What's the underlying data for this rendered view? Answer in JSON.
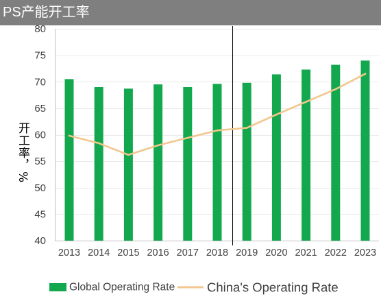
{
  "chart_data": {
    "type": "bar",
    "title": "PS产能开工率",
    "ylabel": "开工率，%",
    "categories": [
      "2013",
      "2014",
      "2015",
      "2016",
      "2017",
      "2018",
      "2019",
      "2020",
      "2021",
      "2022",
      "2023"
    ],
    "ylim": [
      40,
      80
    ],
    "yticks": [
      40,
      45,
      50,
      55,
      60,
      65,
      70,
      75,
      80
    ],
    "grid": true,
    "legend": "bottom",
    "series": [
      {
        "name": "Global Operating Rate",
        "type": "bar",
        "color": "#13a84e",
        "values": [
          70.5,
          69.0,
          68.7,
          69.5,
          69.0,
          69.6,
          69.8,
          71.4,
          72.3,
          73.2,
          74.0
        ]
      },
      {
        "name": "China's Operating Rate",
        "type": "line",
        "color": "#f2c68d",
        "values": [
          59.8,
          58.4,
          56.2,
          58.0,
          59.4,
          60.8,
          61.3,
          63.8,
          66.2,
          68.6,
          71.5
        ]
      }
    ],
    "divider": {
      "x": 2018.5,
      "color": "#000000"
    }
  },
  "style": {
    "header_bg": "#7f7f7f",
    "header_text": "#ffffff",
    "axis_text": "#404040"
  }
}
